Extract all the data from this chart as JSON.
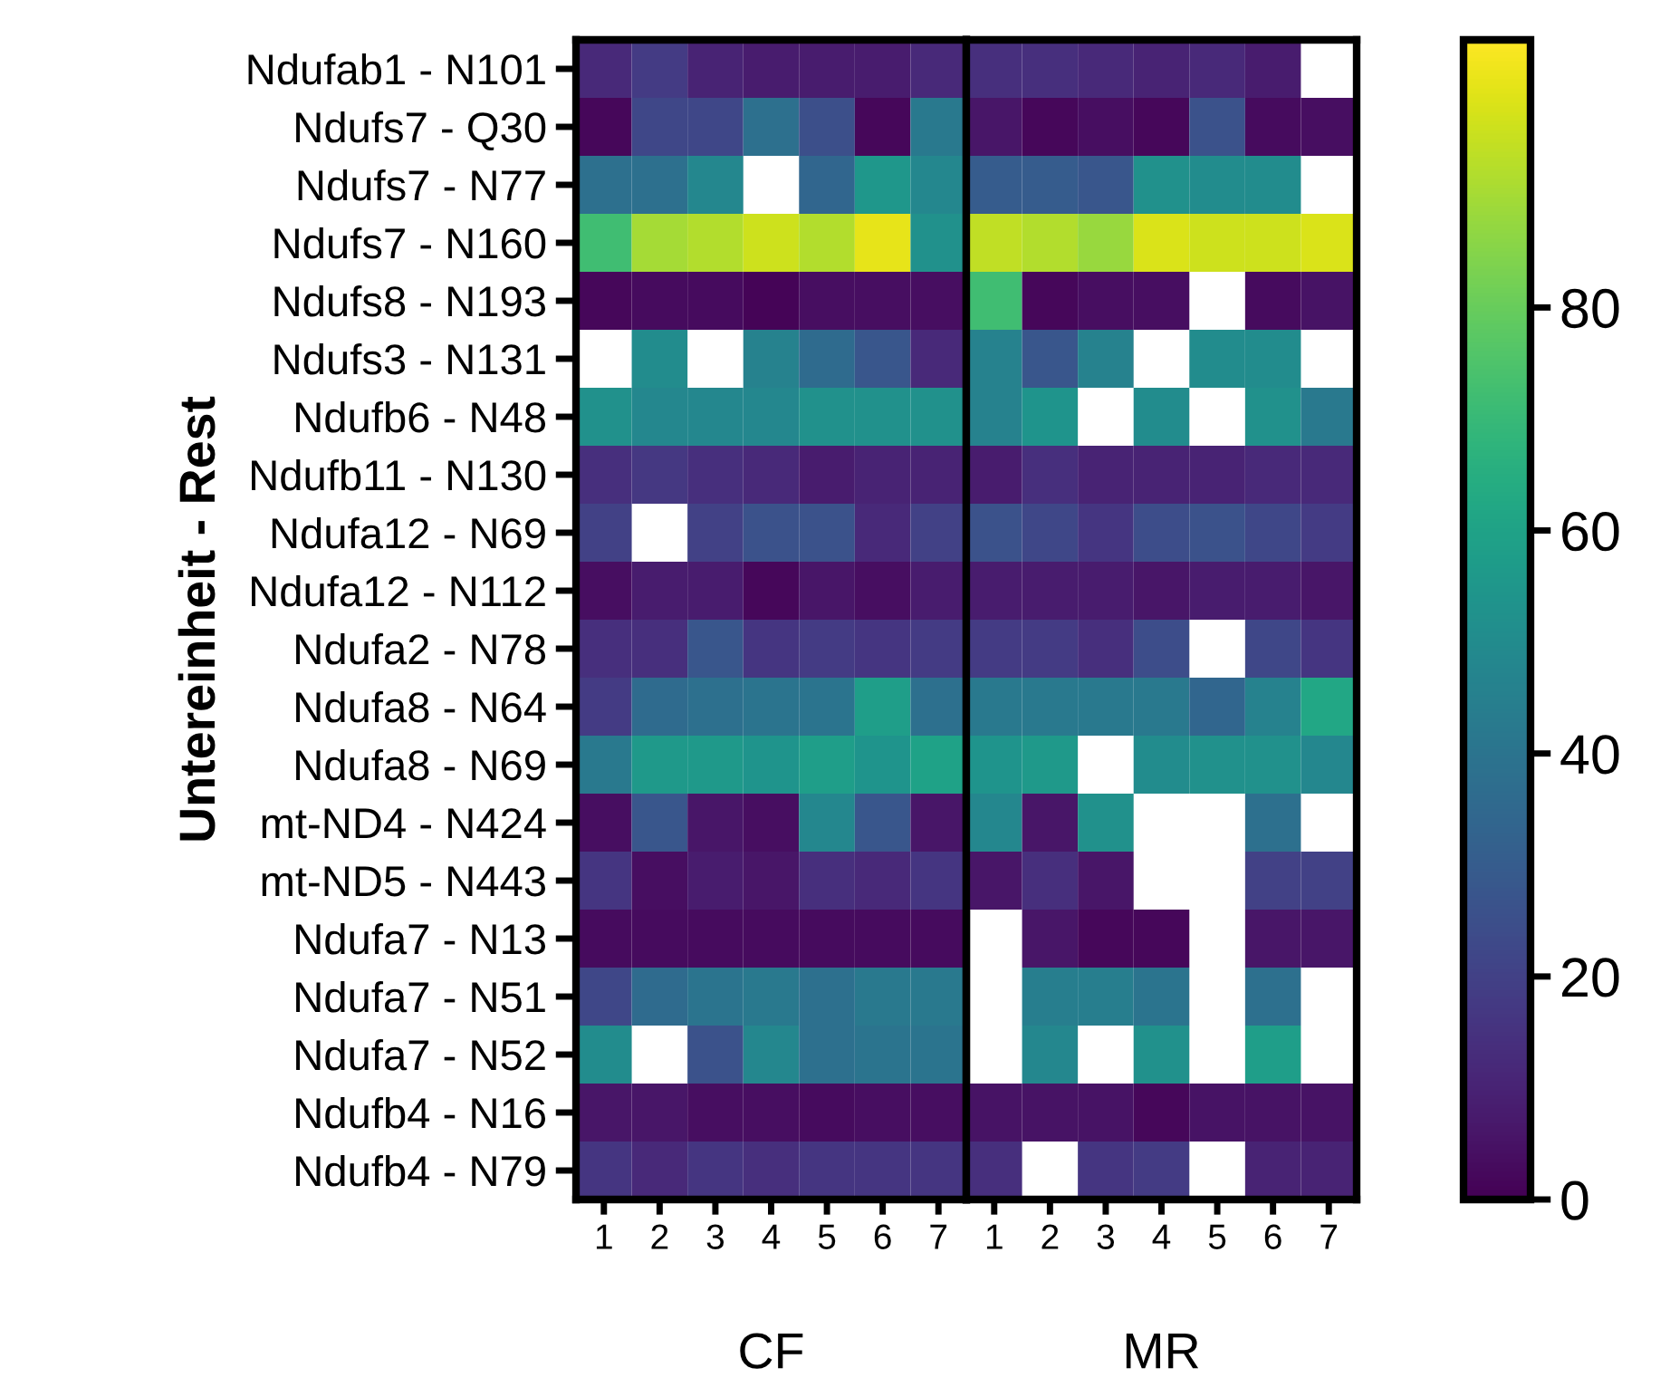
{
  "chart_data": {
    "type": "heatmap",
    "ylabel": "Untereinheit - Rest",
    "annotations": [
      "CF",
      "MR"
    ],
    "categories": [
      "1",
      "2",
      "3",
      "4",
      "5",
      "6",
      "7",
      "1",
      "2",
      "3",
      "4",
      "5",
      "6",
      "7"
    ],
    "y_categories": [
      "Ndufab1 - N101",
      "Ndufs7 - Q30",
      "Ndufs7 - N77",
      "Ndufs7 - N160",
      "Ndufs8 - N193",
      "Ndufs3 - N131",
      "Ndufb6 - N48",
      "Ndufb11 - N130",
      "Ndufa12 - N69",
      "Ndufa12 - N112",
      "Ndufa2 - N78",
      "Ndufa8 - N64",
      "Ndufa8 - N69",
      "mt-ND4 - N424",
      "mt-ND5 - N443",
      "Ndufa7 - N13",
      "Ndufa7 - N51",
      "Ndufa7 - N52",
      "Ndufb4 - N16",
      "Ndufb4 - N79"
    ],
    "cells": [
      [
        12,
        18,
        10,
        8,
        8,
        8,
        12,
        14,
        14,
        12,
        10,
        12,
        8,
        null
      ],
      [
        2,
        22,
        22,
        38,
        25,
        2,
        42,
        6,
        2,
        4,
        2,
        26,
        3,
        4
      ],
      [
        38,
        38,
        48,
        null,
        34,
        55,
        48,
        30,
        30,
        28,
        52,
        50,
        50,
        null
      ],
      [
        72,
        90,
        92,
        96,
        92,
        100,
        52,
        94,
        92,
        88,
        98,
        96,
        96,
        98
      ],
      [
        2,
        3,
        3,
        1,
        4,
        4,
        4,
        72,
        2,
        4,
        4,
        null,
        3,
        5
      ],
      [
        null,
        50,
        null,
        46,
        36,
        28,
        12,
        46,
        28,
        46,
        null,
        50,
        50,
        null
      ],
      [
        52,
        48,
        48,
        48,
        52,
        52,
        52,
        46,
        54,
        null,
        50,
        null,
        52,
        42
      ],
      [
        14,
        17,
        14,
        12,
        8,
        10,
        10,
        8,
        14,
        10,
        10,
        10,
        12,
        12
      ],
      [
        20,
        null,
        20,
        26,
        26,
        12,
        20,
        26,
        22,
        16,
        24,
        26,
        22,
        18
      ],
      [
        4,
        8,
        8,
        2,
        6,
        4,
        8,
        8,
        8,
        8,
        6,
        8,
        8,
        6
      ],
      [
        14,
        14,
        28,
        16,
        18,
        16,
        18,
        18,
        18,
        14,
        24,
        null,
        22,
        16
      ],
      [
        18,
        36,
        38,
        40,
        40,
        58,
        38,
        42,
        42,
        42,
        42,
        34,
        46,
        62
      ],
      [
        42,
        56,
        56,
        54,
        58,
        54,
        60,
        54,
        56,
        null,
        50,
        52,
        52,
        48
      ],
      [
        4,
        28,
        6,
        4,
        48,
        28,
        6,
        48,
        6,
        52,
        null,
        null,
        38,
        null
      ],
      [
        16,
        4,
        8,
        6,
        14,
        12,
        16,
        6,
        14,
        6,
        null,
        null,
        20,
        20
      ],
      [
        3,
        3,
        3,
        3,
        3,
        3,
        3,
        null,
        6,
        2,
        2,
        null,
        6,
        6
      ],
      [
        22,
        36,
        40,
        42,
        38,
        42,
        42,
        null,
        44,
        44,
        40,
        null,
        38,
        null
      ],
      [
        50,
        null,
        26,
        48,
        38,
        40,
        40,
        null,
        48,
        null,
        52,
        null,
        58,
        null
      ],
      [
        6,
        6,
        4,
        4,
        3,
        4,
        4,
        5,
        5,
        5,
        2,
        5,
        5,
        5
      ],
      [
        16,
        12,
        16,
        14,
        16,
        16,
        16,
        14,
        null,
        16,
        18,
        null,
        10,
        10
      ]
    ],
    "clim": [
      0,
      104
    ],
    "cticks": [
      0,
      20,
      40,
      60,
      80
    ]
  }
}
